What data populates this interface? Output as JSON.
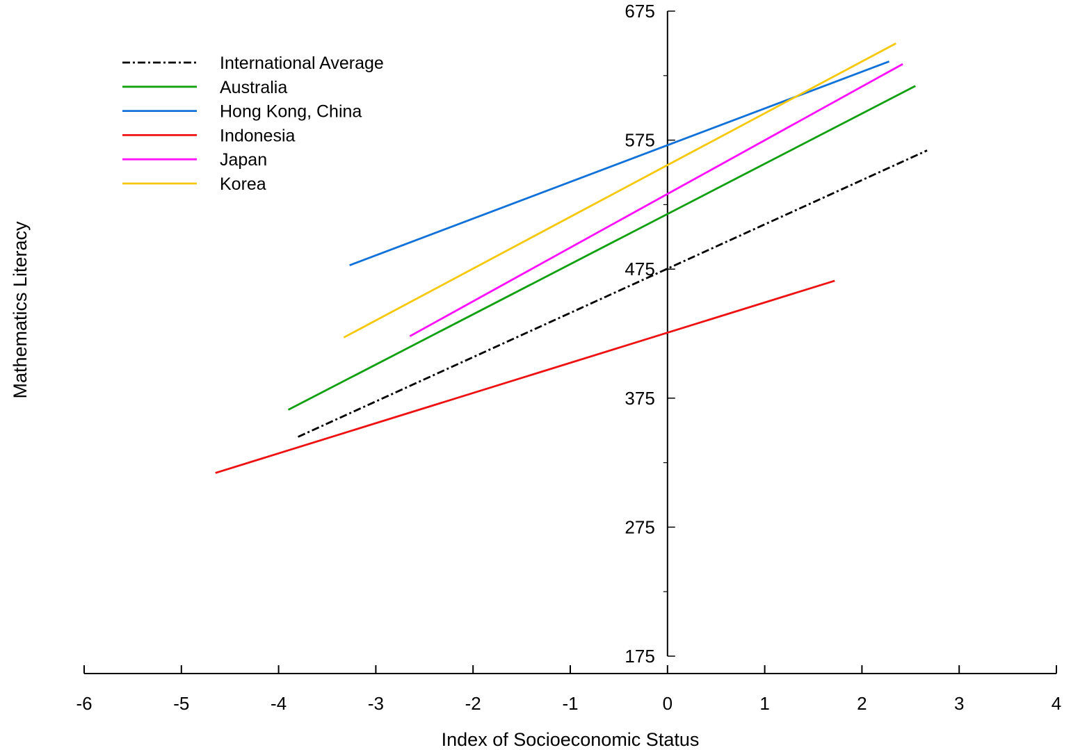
{
  "chart_data": {
    "type": "line",
    "xlabel": "Index of Socioeconomic Status",
    "ylabel": "Mathematics Literacy",
    "xlim": [
      -6,
      4
    ],
    "ylim": [
      175,
      675
    ],
    "x_ticks": [
      -6,
      -5,
      -4,
      -3,
      -2,
      -1,
      0,
      1,
      2,
      3,
      4
    ],
    "y_ticks": [
      175,
      275,
      375,
      475,
      575,
      675
    ],
    "y_minor_ticks": [
      225,
      325,
      425,
      525,
      625
    ],
    "grid": false,
    "legend_position": "top-left",
    "series": [
      {
        "name": "International Average",
        "color": "#000000",
        "dash": "dashdot",
        "x": [
          -3.8,
          2.67
        ],
        "y": [
          345,
          567
        ]
      },
      {
        "name": "Australia",
        "color": "#10a010",
        "dash": "solid",
        "x": [
          -3.9,
          2.55
        ],
        "y": [
          366,
          617
        ]
      },
      {
        "name": "Hong Kong, China",
        "color": "#1071d8",
        "dash": "solid",
        "x": [
          -3.27,
          2.28
        ],
        "y": [
          478,
          636
        ]
      },
      {
        "name": "Indonesia",
        "color": "#ee1111",
        "dash": "solid",
        "x": [
          -4.65,
          1.72
        ],
        "y": [
          317,
          466
        ]
      },
      {
        "name": "Japan",
        "color": "#ff10ff",
        "dash": "solid",
        "x": [
          -2.65,
          2.42
        ],
        "y": [
          423,
          634
        ]
      },
      {
        "name": "Korea",
        "color": "#f6c80e",
        "dash": "solid",
        "x": [
          -3.33,
          2.35
        ],
        "y": [
          422,
          650
        ]
      }
    ]
  }
}
